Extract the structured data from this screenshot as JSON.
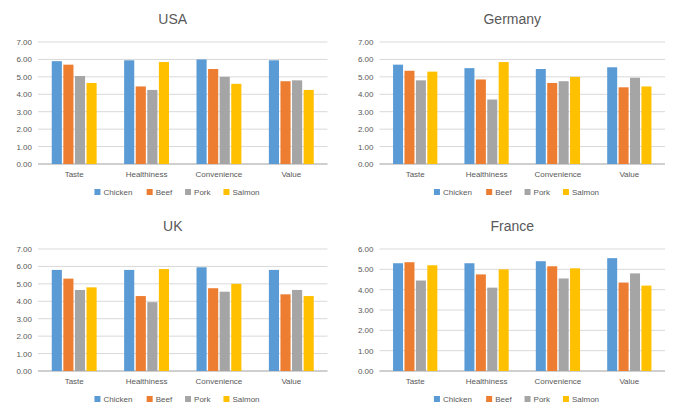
{
  "chart_data": [
    {
      "type": "bar",
      "title": "USA",
      "categories": [
        "Taste",
        "Healthiness",
        "Convenience",
        "Value"
      ],
      "series": [
        {
          "name": "Chicken",
          "color": "#5b9bd5",
          "values": [
            5.9,
            5.95,
            6.0,
            5.95
          ]
        },
        {
          "name": "Beef",
          "color": "#ed7d31",
          "values": [
            5.7,
            4.45,
            5.45,
            4.75
          ]
        },
        {
          "name": "Pork",
          "color": "#a5a5a5",
          "values": [
            5.05,
            4.25,
            5.0,
            4.8
          ]
        },
        {
          "name": "Salmon",
          "color": "#ffc000",
          "values": [
            4.65,
            5.85,
            4.6,
            4.25
          ]
        }
      ],
      "ylim": [
        0,
        7
      ],
      "yticks": [
        {
          "value": 0,
          "label": "0.00"
        },
        {
          "value": 1,
          "label": "1.00"
        },
        {
          "value": 2,
          "label": "2.00"
        },
        {
          "value": 3,
          "label": "3.00"
        },
        {
          "value": 4,
          "label": "4.00"
        },
        {
          "value": 5,
          "label": "5.00"
        },
        {
          "value": 6,
          "label": "6.00"
        },
        {
          "value": 7,
          "label": "7.00"
        }
      ],
      "grid": true,
      "legend": "bottom"
    },
    {
      "type": "bar",
      "title": "Germany",
      "categories": [
        "Taste",
        "Healthiness",
        "Convenience",
        "Value"
      ],
      "series": [
        {
          "name": "Chicken",
          "color": "#5b9bd5",
          "values": [
            5.7,
            5.5,
            5.45,
            5.55
          ]
        },
        {
          "name": "Beef",
          "color": "#ed7d31",
          "values": [
            5.35,
            4.85,
            4.65,
            4.4
          ]
        },
        {
          "name": "Pork",
          "color": "#a5a5a5",
          "values": [
            4.8,
            3.7,
            4.75,
            4.95
          ]
        },
        {
          "name": "Salmon",
          "color": "#ffc000",
          "values": [
            5.3,
            5.85,
            5.0,
            4.45
          ]
        }
      ],
      "ylim": [
        0,
        7
      ],
      "yticks": [
        {
          "value": 0,
          "label": "0.00"
        },
        {
          "value": 1,
          "label": "1.00"
        },
        {
          "value": 2,
          "label": "2.00"
        },
        {
          "value": 3,
          "label": "3.00"
        },
        {
          "value": 4,
          "label": "4.00"
        },
        {
          "value": 5,
          "label": "5.00"
        },
        {
          "value": 6,
          "label": "6.00"
        },
        {
          "value": 7,
          "label": "7.00"
        }
      ],
      "grid": true,
      "legend": "bottom"
    },
    {
      "type": "bar",
      "title": "UK",
      "categories": [
        "Taste",
        "Healthiness",
        "Convenience",
        "Value"
      ],
      "series": [
        {
          "name": "Chicken",
          "color": "#5b9bd5",
          "values": [
            5.8,
            5.8,
            5.95,
            5.8
          ]
        },
        {
          "name": "Beef",
          "color": "#ed7d31",
          "values": [
            5.3,
            4.3,
            4.75,
            4.4
          ]
        },
        {
          "name": "Pork",
          "color": "#a5a5a5",
          "values": [
            4.65,
            3.95,
            4.55,
            4.65
          ]
        },
        {
          "name": "Salmon",
          "color": "#ffc000",
          "values": [
            4.8,
            5.85,
            5.0,
            4.3
          ]
        }
      ],
      "ylim": [
        0,
        7
      ],
      "yticks": [
        {
          "value": 0,
          "label": "0.00"
        },
        {
          "value": 1,
          "label": "1.00"
        },
        {
          "value": 2,
          "label": "2.00"
        },
        {
          "value": 3,
          "label": "3.00"
        },
        {
          "value": 4,
          "label": "4.00"
        },
        {
          "value": 5,
          "label": "5.00"
        },
        {
          "value": 6,
          "label": "6.00"
        },
        {
          "value": 7,
          "label": "7.00"
        }
      ],
      "grid": true,
      "legend": "bottom"
    },
    {
      "type": "bar",
      "title": "France",
      "categories": [
        "Taste",
        "Healthiness",
        "Convenience",
        "Value"
      ],
      "series": [
        {
          "name": "Chicken",
          "color": "#5b9bd5",
          "values": [
            5.3,
            5.3,
            5.4,
            5.55
          ]
        },
        {
          "name": "Beef",
          "color": "#ed7d31",
          "values": [
            5.35,
            4.75,
            5.15,
            4.35
          ]
        },
        {
          "name": "Pork",
          "color": "#a5a5a5",
          "values": [
            4.45,
            4.1,
            4.55,
            4.8
          ]
        },
        {
          "name": "Salmon",
          "color": "#ffc000",
          "values": [
            5.2,
            5.0,
            5.05,
            4.2
          ]
        }
      ],
      "ylim": [
        0,
        6
      ],
      "yticks": [
        {
          "value": 0,
          "label": "0.00"
        },
        {
          "value": 1,
          "label": "1.00"
        },
        {
          "value": 2,
          "label": "2.00"
        },
        {
          "value": 3,
          "label": "3.00"
        },
        {
          "value": 4,
          "label": "4.00"
        },
        {
          "value": 5,
          "label": "5.00"
        },
        {
          "value": 6,
          "label": "6.00"
        }
      ],
      "grid": true,
      "legend": "bottom"
    }
  ]
}
